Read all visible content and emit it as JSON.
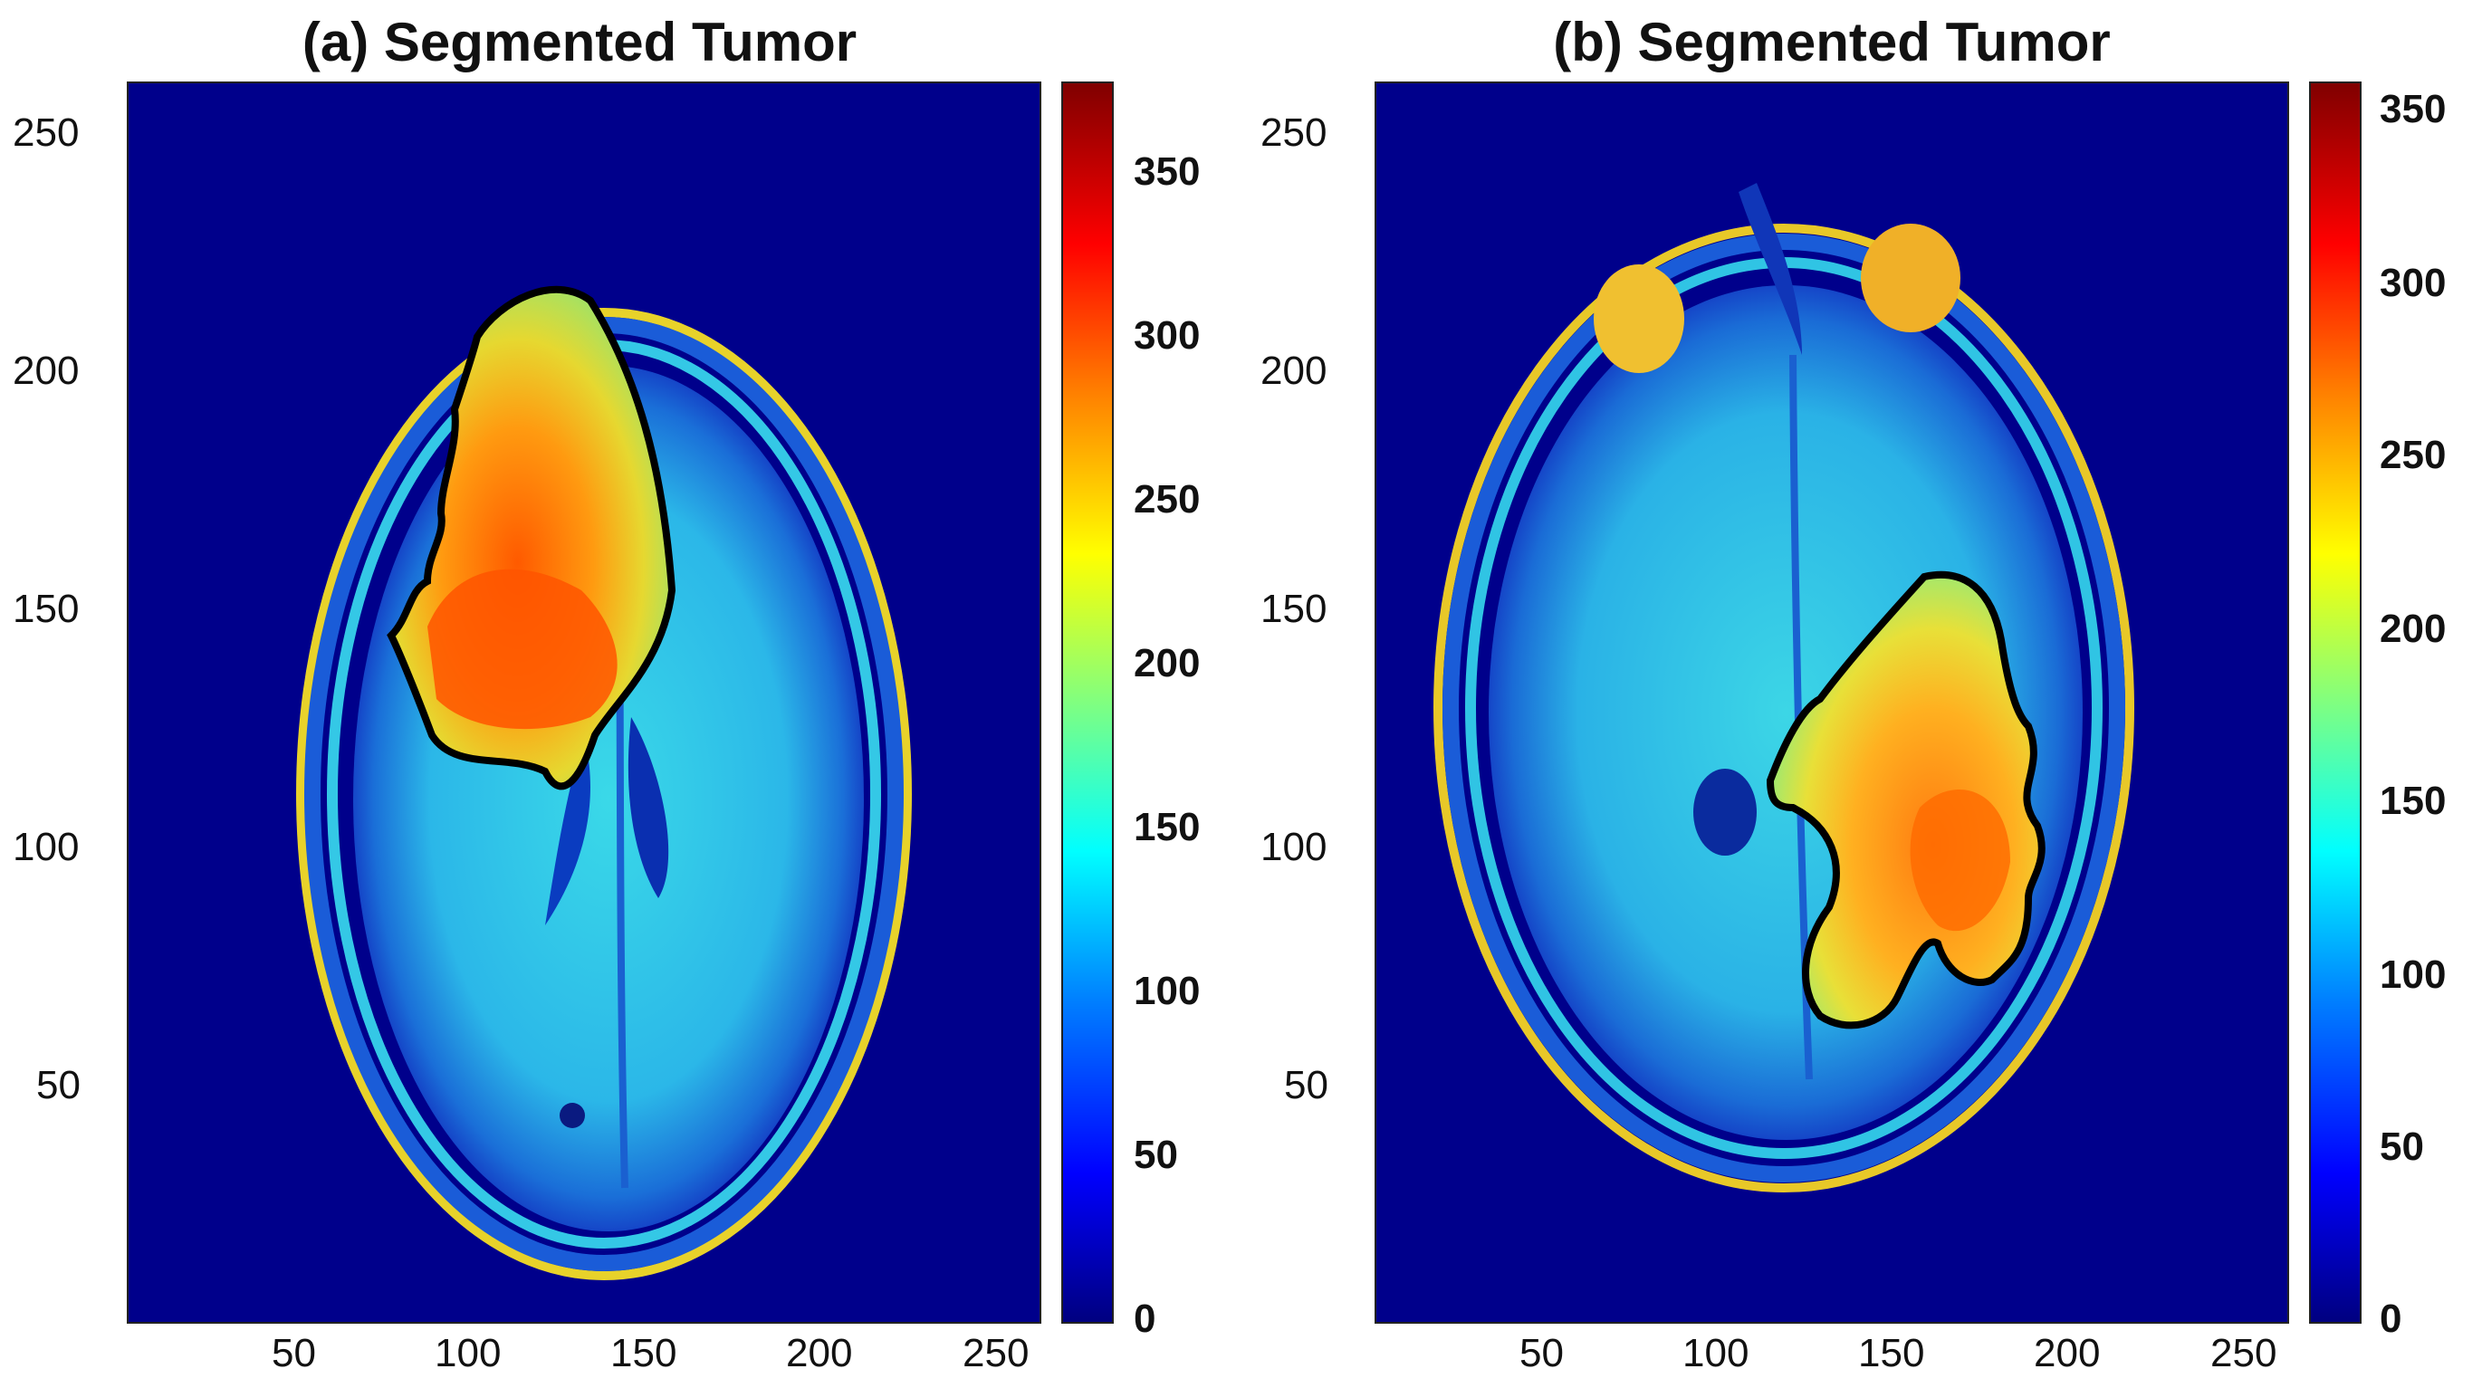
{
  "panels": [
    {
      "title": "(a) Segmented Tumor",
      "x_ticks": [
        "50",
        "100",
        "150",
        "200",
        "250"
      ],
      "y_ticks": [
        "250",
        "200",
        "150",
        "100",
        "50"
      ],
      "colorbar_ticks": [
        "350",
        "300",
        "250",
        "200",
        "150",
        "100",
        "50",
        "0"
      ],
      "colorbar_max": 380,
      "contour_color": "#000000"
    },
    {
      "title": "(b) Segmented Tumor",
      "x_ticks": [
        "50",
        "100",
        "150",
        "200",
        "250"
      ],
      "y_ticks": [
        "250",
        "200",
        "150",
        "100",
        "50"
      ],
      "colorbar_ticks": [
        "350",
        "300",
        "250",
        "200",
        "150",
        "100",
        "50",
        "0"
      ],
      "colorbar_max": 360,
      "contour_color": "#000000"
    }
  ],
  "colormap": "jet",
  "axis_range": {
    "x": [
      0,
      260
    ],
    "y": [
      0,
      260
    ]
  }
}
